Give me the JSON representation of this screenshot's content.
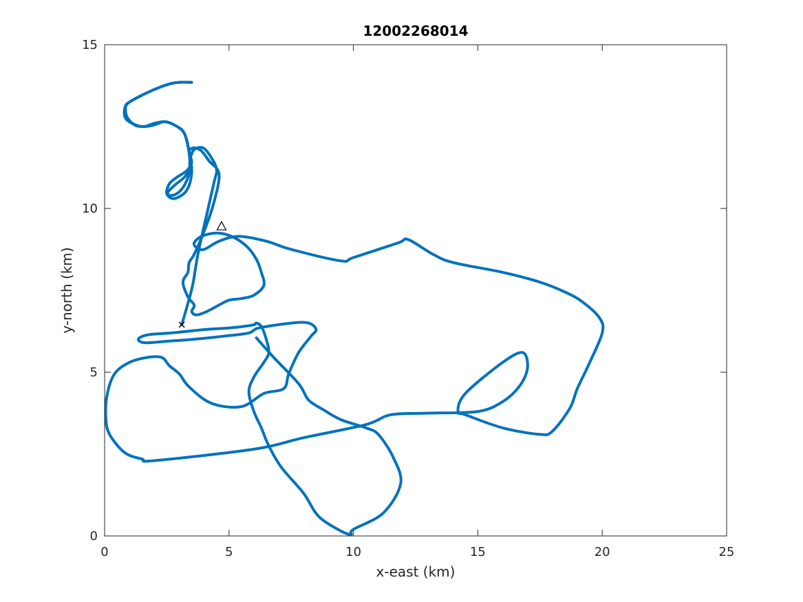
{
  "chart_data": {
    "type": "line",
    "title": "12002268014",
    "xlabel": "x-east (km)",
    "ylabel": "y-north (km)",
    "xlim": [
      0,
      25
    ],
    "ylim": [
      0,
      15
    ],
    "xticks": [
      0,
      5,
      10,
      15,
      20,
      25
    ],
    "yticks": [
      0,
      5,
      10,
      15
    ],
    "grid": false,
    "legend": "none",
    "series": [
      {
        "color": "#0072BD",
        "x": [
          3.5,
          3.0,
          2.6,
          1.9,
          1.0,
          0.8,
          0.9,
          1.5,
          2.0,
          2.4,
          2.8,
          3.2,
          3.4,
          3.5,
          3.3,
          2.8,
          2.5,
          2.6,
          2.9,
          3.3,
          3.5,
          3.4,
          3.6,
          3.9,
          4.2,
          4.6,
          4.4,
          4.0,
          3.6,
          3.4,
          3.35,
          3.15,
          3.35,
          3.6,
          3.5,
          3.7,
          4.1,
          4.6,
          5.0,
          5.5,
          6.0,
          6.4,
          6.3,
          6.1,
          5.7,
          5.1,
          4.5,
          3.9,
          3.6,
          3.7,
          4.0,
          4.6,
          5.4,
          6.5,
          7.5,
          9.5,
          10.0,
          11.8,
          12.2,
          13.2,
          14.0,
          16.0,
          17.5,
          18.5,
          19.2,
          19.9,
          20.0,
          19.5,
          19.0,
          18.7,
          18.0,
          17.5,
          16.0,
          14.5,
          14.2,
          14.5,
          16.0,
          16.8,
          17.0,
          16.7,
          16.0,
          15.0,
          13.0,
          11.5,
          10.5,
          8.0,
          6.0,
          2.0,
          1.5,
          0.8,
          0.2,
          0.05,
          0.1,
          0.4,
          1.0,
          1.7,
          2.3,
          2.6,
          3.0,
          3.4,
          4.3,
          5.5,
          6.4,
          7.2,
          7.4,
          7.8,
          8.3,
          8.5,
          8.2,
          7.5,
          6.2,
          5.8,
          4.8,
          3.5,
          2.6,
          1.7,
          1.4,
          1.4,
          1.8,
          2.7,
          4.0,
          5.0,
          5.6,
          6.0,
          6.1,
          6.3,
          6.5,
          6.6,
          6.4,
          6.0,
          5.8,
          6.0,
          6.3,
          6.6,
          7.1,
          8.0,
          8.6,
          9.5,
          9.9,
          10.0,
          11.2,
          11.9,
          11.6,
          11.0,
          10.5,
          9.5,
          8.8,
          8.2,
          7.8,
          6.8,
          6.1
        ],
        "y": [
          13.85,
          13.85,
          13.8,
          13.6,
          13.25,
          13.0,
          12.7,
          12.5,
          12.6,
          12.65,
          12.55,
          12.3,
          11.7,
          11.1,
          10.55,
          10.3,
          10.45,
          10.75,
          10.95,
          11.15,
          11.4,
          11.75,
          11.85,
          11.75,
          11.45,
          11.05,
          10.2,
          9.3,
          8.6,
          8.35,
          8.05,
          7.75,
          7.3,
          7.05,
          6.85,
          6.75,
          6.85,
          7.05,
          7.2,
          7.25,
          7.35,
          7.65,
          8.05,
          8.45,
          8.85,
          9.15,
          9.25,
          9.15,
          8.95,
          8.8,
          8.75,
          9.0,
          9.15,
          9.0,
          8.75,
          8.4,
          8.5,
          8.95,
          9.05,
          8.6,
          8.35,
          8.05,
          7.75,
          7.45,
          7.15,
          6.65,
          6.2,
          5.3,
          4.5,
          3.9,
          3.2,
          3.1,
          3.3,
          3.7,
          3.8,
          4.35,
          5.3,
          5.6,
          5.15,
          4.6,
          4.1,
          3.8,
          3.75,
          3.7,
          3.4,
          3.0,
          2.65,
          2.3,
          2.35,
          2.55,
          3.1,
          3.6,
          4.3,
          4.95,
          5.3,
          5.45,
          5.45,
          5.2,
          4.95,
          4.55,
          4.05,
          3.95,
          4.35,
          4.5,
          4.95,
          5.6,
          6.1,
          6.3,
          6.5,
          6.5,
          6.35,
          6.2,
          6.1,
          6.0,
          5.95,
          5.9,
          5.95,
          6.05,
          6.15,
          6.2,
          6.3,
          6.35,
          6.4,
          6.45,
          6.5,
          6.4,
          6.0,
          5.6,
          5.3,
          4.85,
          4.4,
          3.8,
          3.3,
          2.75,
          2.1,
          1.3,
          0.6,
          0.15,
          0.05,
          0.2,
          0.7,
          1.6,
          2.4,
          3.1,
          3.3,
          3.55,
          3.85,
          4.15,
          4.65,
          5.45,
          6.05
        ],
        "path_xy": [
          [
            3.5,
            13.85
          ],
          [
            3.0,
            13.85
          ],
          [
            2.6,
            13.8
          ],
          [
            1.9,
            13.6
          ],
          [
            1.0,
            13.25
          ],
          [
            0.85,
            13.1
          ],
          [
            0.9,
            12.8
          ],
          [
            1.2,
            12.55
          ],
          [
            1.6,
            12.5
          ],
          [
            2.0,
            12.55
          ],
          [
            2.4,
            12.65
          ],
          [
            2.8,
            12.55
          ],
          [
            3.2,
            12.3
          ],
          [
            3.4,
            11.7
          ],
          [
            3.4,
            11.1
          ],
          [
            3.2,
            10.7
          ],
          [
            2.9,
            10.45
          ],
          [
            2.6,
            10.4
          ],
          [
            2.55,
            10.5
          ],
          [
            2.8,
            10.7
          ],
          [
            3.2,
            10.95
          ],
          [
            3.4,
            11.2
          ],
          [
            3.45,
            11.55
          ],
          [
            3.6,
            11.8
          ],
          [
            3.95,
            11.85
          ],
          [
            4.25,
            11.6
          ],
          [
            4.5,
            11.2
          ],
          [
            4.4,
            10.8
          ],
          [
            4.1,
            9.8
          ],
          [
            3.75,
            8.6
          ],
          [
            3.55,
            7.7
          ],
          [
            3.35,
            7.1
          ],
          [
            3.1,
            6.45
          ]
        ],
        "marks": {
          "start_symbol": "triangle",
          "start": [
            4.7,
            9.45
          ],
          "end_symbol": "x",
          "end": [
            3.1,
            6.45
          ]
        }
      }
    ]
  }
}
